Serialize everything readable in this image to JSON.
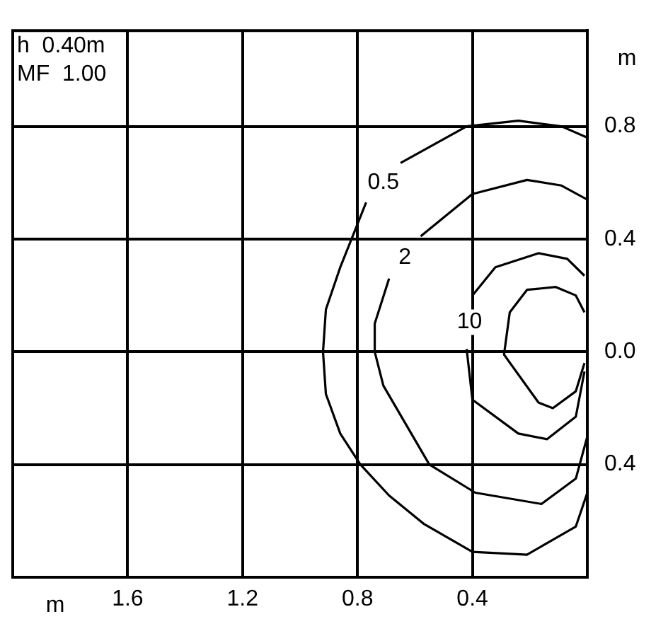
{
  "chart_data": {
    "type": "line",
    "xlabel": "m",
    "ylabel": "m",
    "marker": "none",
    "line_style": "solid",
    "grid": true,
    "legend": false,
    "xlim": [
      2.0,
      0
    ],
    "xticks": [
      {
        "value": 2.0,
        "label": null
      },
      1.6,
      1.2,
      0.8,
      0.4,
      {
        "value": 0,
        "label": null
      }
    ],
    "ylim": [
      -0.8,
      1.14
    ],
    "yticks": [
      {
        "value": -0.4,
        "label": "0.4"
      },
      {
        "value": 0,
        "label": "0.0"
      },
      0.4,
      0.8
    ],
    "series": [
      {
        "name": "0.5",
        "color": "#000000",
        "x": [
          0.0,
          0.09,
          0.24,
          0.42,
          0.65,
          0.7,
          0.77,
          0.86,
          0.91,
          0.92,
          0.91,
          0.86,
          0.79,
          0.69,
          0.57,
          0.4,
          0.21,
          0.04,
          0.0
        ],
        "values": [
          0.76,
          0.8,
          0.82,
          0.8,
          0.67,
          null,
          0.53,
          0.3,
          0.15,
          0.0,
          -0.15,
          -0.29,
          -0.4,
          -0.51,
          -0.61,
          -0.71,
          -0.72,
          -0.62,
          -0.5
        ]
      },
      {
        "name": "2",
        "color": "#000000",
        "x": [
          0.0,
          0.09,
          0.21,
          0.4,
          0.58,
          0.64,
          0.69,
          0.74,
          0.74,
          0.71,
          0.55,
          0.39,
          0.16,
          0.04,
          0.0
        ],
        "values": [
          0.54,
          0.59,
          0.61,
          0.56,
          0.41,
          null,
          0.26,
          0.1,
          0.0,
          -0.12,
          -0.4,
          -0.5,
          -0.54,
          -0.45,
          -0.3
        ]
      },
      {
        "name": "10",
        "color": "#000000",
        "x": [
          0.01,
          0.07,
          0.17,
          0.32,
          0.4,
          0.41,
          0.42,
          0.4,
          0.24,
          0.14,
          0.04,
          0.01
        ],
        "values": [
          0.27,
          0.33,
          0.35,
          0.3,
          0.2,
          null,
          0.01,
          -0.17,
          -0.29,
          -0.31,
          -0.23,
          -0.07
        ]
      },
      {
        "color": "#000000",
        "x": [
          0.01,
          0.04,
          0.11,
          0.21,
          0.27,
          0.29,
          0.17,
          0.12,
          0.04,
          0.01
        ],
        "values": [
          0.14,
          0.2,
          0.23,
          0.22,
          0.14,
          -0.01,
          -0.18,
          -0.2,
          -0.14,
          -0.04
        ]
      }
    ],
    "annotations": [
      "h  0.40m",
      "MF  1.00"
    ]
  }
}
